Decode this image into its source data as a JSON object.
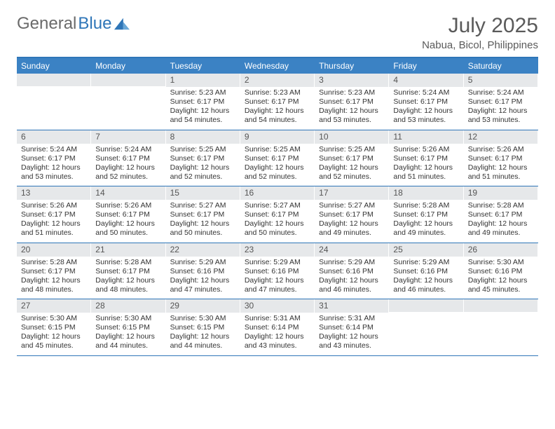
{
  "brand": {
    "part1": "General",
    "part2": "Blue"
  },
  "title": "July 2025",
  "location": "Nabua, Bicol, Philippines",
  "colors": {
    "accent": "#3b82c4",
    "accent_dark": "#2f76b8",
    "daynum_bg": "#e6e8ea",
    "text": "#333333",
    "header_text": "#5a5a5a"
  },
  "dow": [
    "Sunday",
    "Monday",
    "Tuesday",
    "Wednesday",
    "Thursday",
    "Friday",
    "Saturday"
  ],
  "weeks": [
    [
      null,
      null,
      {
        "d": "1",
        "sr": "Sunrise: 5:23 AM",
        "ss": "Sunset: 6:17 PM",
        "dl1": "Daylight: 12 hours",
        "dl2": "and 54 minutes."
      },
      {
        "d": "2",
        "sr": "Sunrise: 5:23 AM",
        "ss": "Sunset: 6:17 PM",
        "dl1": "Daylight: 12 hours",
        "dl2": "and 54 minutes."
      },
      {
        "d": "3",
        "sr": "Sunrise: 5:23 AM",
        "ss": "Sunset: 6:17 PM",
        "dl1": "Daylight: 12 hours",
        "dl2": "and 53 minutes."
      },
      {
        "d": "4",
        "sr": "Sunrise: 5:24 AM",
        "ss": "Sunset: 6:17 PM",
        "dl1": "Daylight: 12 hours",
        "dl2": "and 53 minutes."
      },
      {
        "d": "5",
        "sr": "Sunrise: 5:24 AM",
        "ss": "Sunset: 6:17 PM",
        "dl1": "Daylight: 12 hours",
        "dl2": "and 53 minutes."
      }
    ],
    [
      {
        "d": "6",
        "sr": "Sunrise: 5:24 AM",
        "ss": "Sunset: 6:17 PM",
        "dl1": "Daylight: 12 hours",
        "dl2": "and 53 minutes."
      },
      {
        "d": "7",
        "sr": "Sunrise: 5:24 AM",
        "ss": "Sunset: 6:17 PM",
        "dl1": "Daylight: 12 hours",
        "dl2": "and 52 minutes."
      },
      {
        "d": "8",
        "sr": "Sunrise: 5:25 AM",
        "ss": "Sunset: 6:17 PM",
        "dl1": "Daylight: 12 hours",
        "dl2": "and 52 minutes."
      },
      {
        "d": "9",
        "sr": "Sunrise: 5:25 AM",
        "ss": "Sunset: 6:17 PM",
        "dl1": "Daylight: 12 hours",
        "dl2": "and 52 minutes."
      },
      {
        "d": "10",
        "sr": "Sunrise: 5:25 AM",
        "ss": "Sunset: 6:17 PM",
        "dl1": "Daylight: 12 hours",
        "dl2": "and 52 minutes."
      },
      {
        "d": "11",
        "sr": "Sunrise: 5:26 AM",
        "ss": "Sunset: 6:17 PM",
        "dl1": "Daylight: 12 hours",
        "dl2": "and 51 minutes."
      },
      {
        "d": "12",
        "sr": "Sunrise: 5:26 AM",
        "ss": "Sunset: 6:17 PM",
        "dl1": "Daylight: 12 hours",
        "dl2": "and 51 minutes."
      }
    ],
    [
      {
        "d": "13",
        "sr": "Sunrise: 5:26 AM",
        "ss": "Sunset: 6:17 PM",
        "dl1": "Daylight: 12 hours",
        "dl2": "and 51 minutes."
      },
      {
        "d": "14",
        "sr": "Sunrise: 5:26 AM",
        "ss": "Sunset: 6:17 PM",
        "dl1": "Daylight: 12 hours",
        "dl2": "and 50 minutes."
      },
      {
        "d": "15",
        "sr": "Sunrise: 5:27 AM",
        "ss": "Sunset: 6:17 PM",
        "dl1": "Daylight: 12 hours",
        "dl2": "and 50 minutes."
      },
      {
        "d": "16",
        "sr": "Sunrise: 5:27 AM",
        "ss": "Sunset: 6:17 PM",
        "dl1": "Daylight: 12 hours",
        "dl2": "and 50 minutes."
      },
      {
        "d": "17",
        "sr": "Sunrise: 5:27 AM",
        "ss": "Sunset: 6:17 PM",
        "dl1": "Daylight: 12 hours",
        "dl2": "and 49 minutes."
      },
      {
        "d": "18",
        "sr": "Sunrise: 5:28 AM",
        "ss": "Sunset: 6:17 PM",
        "dl1": "Daylight: 12 hours",
        "dl2": "and 49 minutes."
      },
      {
        "d": "19",
        "sr": "Sunrise: 5:28 AM",
        "ss": "Sunset: 6:17 PM",
        "dl1": "Daylight: 12 hours",
        "dl2": "and 49 minutes."
      }
    ],
    [
      {
        "d": "20",
        "sr": "Sunrise: 5:28 AM",
        "ss": "Sunset: 6:17 PM",
        "dl1": "Daylight: 12 hours",
        "dl2": "and 48 minutes."
      },
      {
        "d": "21",
        "sr": "Sunrise: 5:28 AM",
        "ss": "Sunset: 6:17 PM",
        "dl1": "Daylight: 12 hours",
        "dl2": "and 48 minutes."
      },
      {
        "d": "22",
        "sr": "Sunrise: 5:29 AM",
        "ss": "Sunset: 6:16 PM",
        "dl1": "Daylight: 12 hours",
        "dl2": "and 47 minutes."
      },
      {
        "d": "23",
        "sr": "Sunrise: 5:29 AM",
        "ss": "Sunset: 6:16 PM",
        "dl1": "Daylight: 12 hours",
        "dl2": "and 47 minutes."
      },
      {
        "d": "24",
        "sr": "Sunrise: 5:29 AM",
        "ss": "Sunset: 6:16 PM",
        "dl1": "Daylight: 12 hours",
        "dl2": "and 46 minutes."
      },
      {
        "d": "25",
        "sr": "Sunrise: 5:29 AM",
        "ss": "Sunset: 6:16 PM",
        "dl1": "Daylight: 12 hours",
        "dl2": "and 46 minutes."
      },
      {
        "d": "26",
        "sr": "Sunrise: 5:30 AM",
        "ss": "Sunset: 6:16 PM",
        "dl1": "Daylight: 12 hours",
        "dl2": "and 45 minutes."
      }
    ],
    [
      {
        "d": "27",
        "sr": "Sunrise: 5:30 AM",
        "ss": "Sunset: 6:15 PM",
        "dl1": "Daylight: 12 hours",
        "dl2": "and 45 minutes."
      },
      {
        "d": "28",
        "sr": "Sunrise: 5:30 AM",
        "ss": "Sunset: 6:15 PM",
        "dl1": "Daylight: 12 hours",
        "dl2": "and 44 minutes."
      },
      {
        "d": "29",
        "sr": "Sunrise: 5:30 AM",
        "ss": "Sunset: 6:15 PM",
        "dl1": "Daylight: 12 hours",
        "dl2": "and 44 minutes."
      },
      {
        "d": "30",
        "sr": "Sunrise: 5:31 AM",
        "ss": "Sunset: 6:14 PM",
        "dl1": "Daylight: 12 hours",
        "dl2": "and 43 minutes."
      },
      {
        "d": "31",
        "sr": "Sunrise: 5:31 AM",
        "ss": "Sunset: 6:14 PM",
        "dl1": "Daylight: 12 hours",
        "dl2": "and 43 minutes."
      },
      null,
      null
    ]
  ]
}
